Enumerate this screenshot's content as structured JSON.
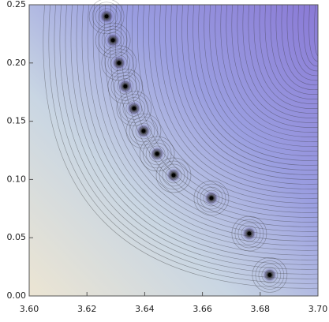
{
  "chart_data": {
    "type": "contour",
    "x": [
      3.6268,
      3.629,
      3.6311,
      3.6333,
      3.6363,
      3.6396,
      3.6443,
      3.65,
      3.6631,
      3.6762,
      3.6833
    ],
    "y": [
      0.24,
      0.2195,
      0.2,
      0.18,
      0.161,
      0.1416,
      0.122,
      0.1037,
      0.084,
      0.0535,
      0.018
    ],
    "color": "#000000",
    "xlim": [
      3.6,
      3.7
    ],
    "ylim": [
      0,
      0.25
    ],
    "xticks": [
      {
        "value": 3.6,
        "label": "3.60"
      },
      3.62,
      3.64,
      3.66,
      3.68,
      {
        "value": 3.7,
        "label": "3.70"
      }
    ],
    "yticks": [
      {
        "value": 0,
        "label": "0.00"
      },
      0.05,
      {
        "value": 0.1,
        "label": "0.10"
      },
      0.15,
      {
        "value": 0.2,
        "label": "0.20"
      },
      0.25
    ]
  }
}
